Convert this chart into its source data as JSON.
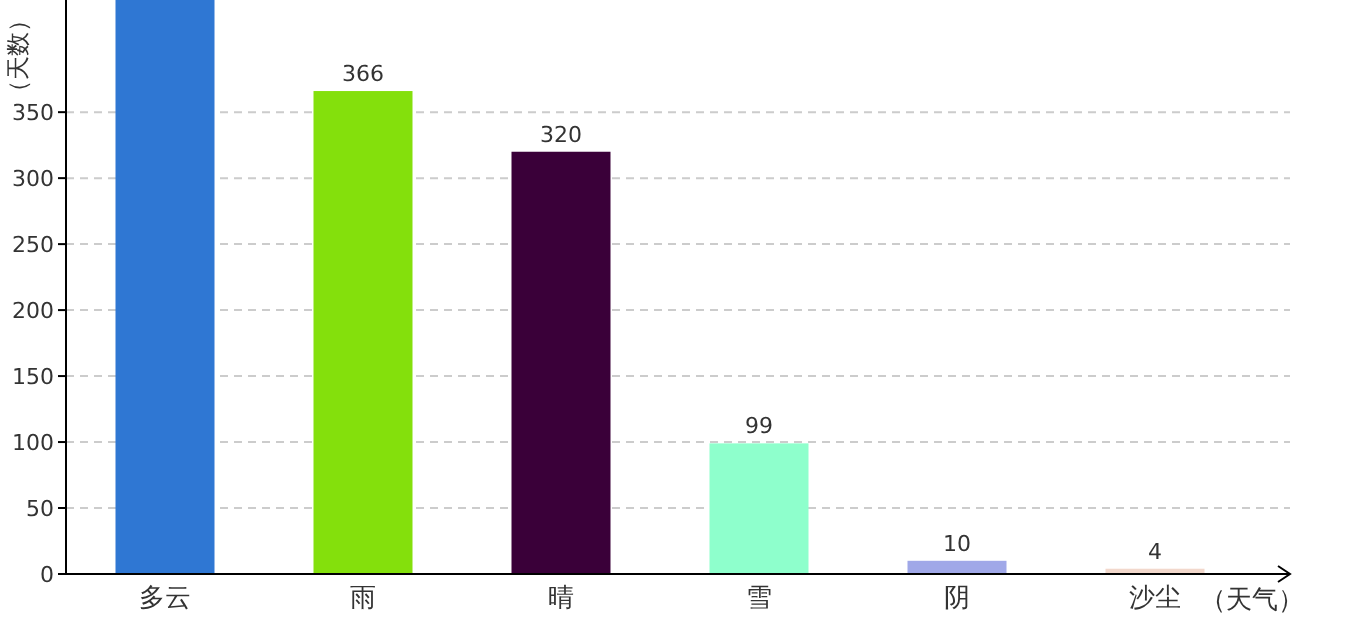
{
  "chart_data": {
    "type": "bar",
    "xlabel": "（天气）",
    "ylabel": "（天数）",
    "categories": [
      "多云",
      "雨",
      "晴",
      "雪",
      "阴",
      "沙尘"
    ],
    "values": [
      435,
      366,
      320,
      99,
      10,
      4
    ],
    "value_labels": [
      null,
      "366",
      "320",
      "99",
      "10",
      "4"
    ],
    "colors": [
      "#2f77d3",
      "#84e00c",
      "#3a0039",
      "#8effcc",
      "#a0a8e8",
      "#f2d8cc"
    ],
    "ylim": [
      0,
      435
    ],
    "yticks": [
      0,
      50,
      100,
      150,
      200,
      250,
      300,
      350
    ],
    "grid": "y"
  }
}
